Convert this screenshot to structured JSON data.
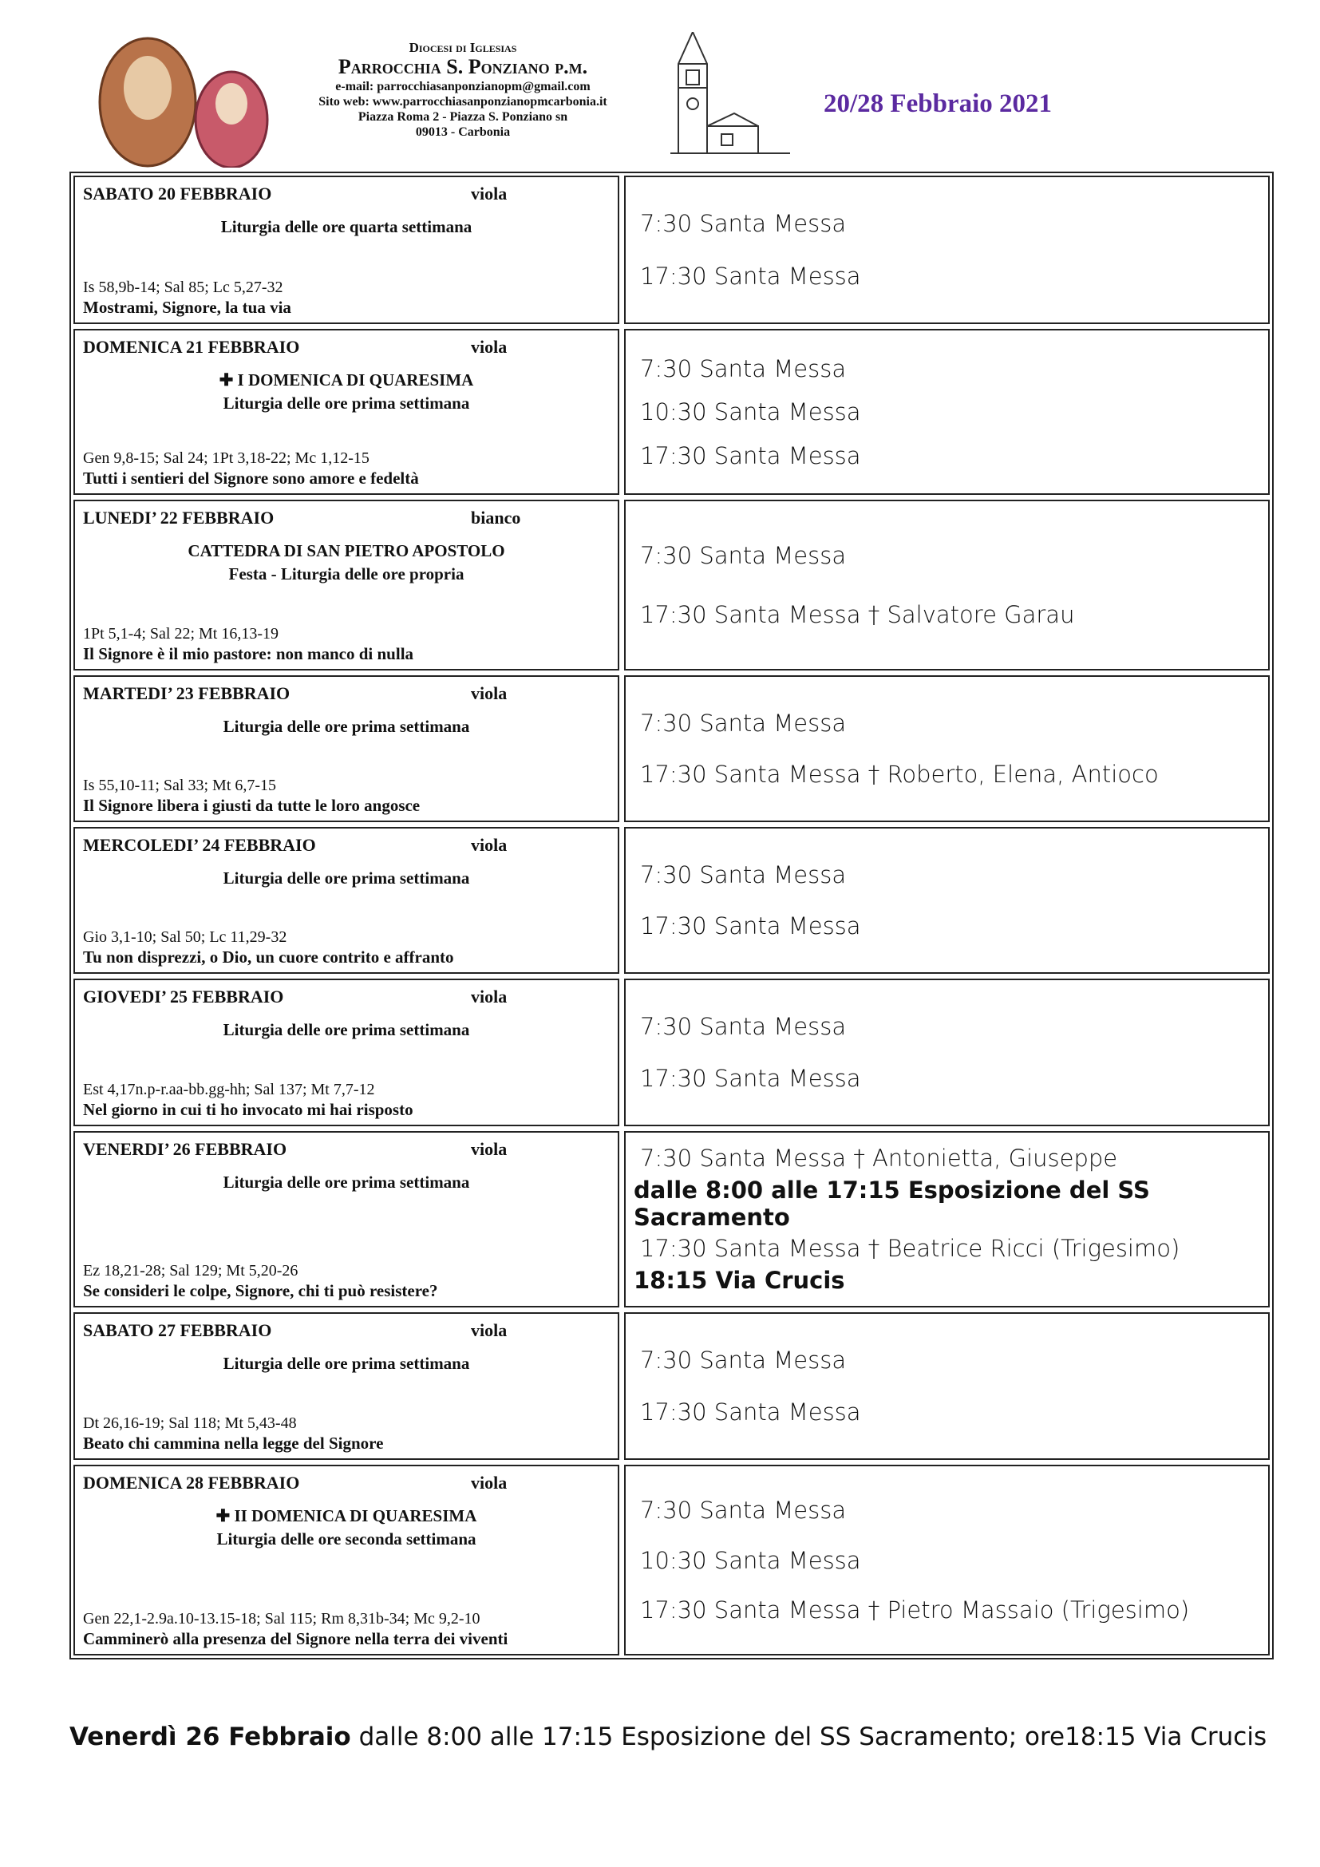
{
  "header": {
    "diocese": "Diocesi di Iglesias",
    "parish": "Parrocchia S. Ponziano p.m.",
    "email": "e-mail: parrocchiasanponzianopm@gmail.com",
    "website": "Sito web: www.parrocchiasanponzianopmcarbonia.it",
    "address": "Piazza Roma 2 - Piazza S. Ponziano sn",
    "city": "09013 - Carbonia",
    "date_range": "20/28 Febbraio 2021"
  },
  "days": [
    {
      "day": "SABATO 20 FEBBRAIO",
      "color": "viola",
      "feast": [],
      "liturgy": "Liturgia delle ore quarta settimana",
      "readings": "Is 58,9b-14; Sal 85; Lc 5,27-32",
      "response": "Mostrami, Signore, la tua via",
      "masses": [
        {
          "text": "7:30 Santa Messa"
        },
        {
          "text": "17:30 Santa Messa"
        }
      ]
    },
    {
      "day": "DOMENICA 21 FEBBRAIO",
      "color": "viola",
      "feast": [
        "✚ I DOMENICA DI QUARESIMA"
      ],
      "liturgy": "Liturgia delle ore prima settimana",
      "readings": "Gen 9,8-15; Sal 24; 1Pt 3,18-22; Mc 1,12-15",
      "response": "Tutti i sentieri del Signore sono amore e fedeltà",
      "masses": [
        {
          "text": "7:30 Santa Messa"
        },
        {
          "text": "10:30 Santa Messa"
        },
        {
          "text": "17:30 Santa Messa"
        }
      ]
    },
    {
      "day": "LUNEDI’ 22 FEBBRAIO",
      "color": "bianco",
      "feast": [
        "CATTEDRA DI SAN PIETRO APOSTOLO"
      ],
      "liturgy": "Festa - Liturgia delle ore propria",
      "readings": "1Pt 5,1-4; Sal 22; Mt 16,13-19",
      "response": "Il Signore è il mio pastore: non manco di nulla",
      "masses": [
        {
          "text": "7:30 Santa Messa"
        },
        {
          "text": "17:30 Santa Messa † Salvatore Garau"
        }
      ]
    },
    {
      "day": "MARTEDI’ 23 FEBBRAIO",
      "color": "viola",
      "feast": [],
      "liturgy": "Liturgia delle ore prima settimana",
      "readings": "Is 55,10-11; Sal 33; Mt 6,7-15",
      "response": "Il Signore libera i giusti da tutte le loro angosce",
      "masses": [
        {
          "text": "7:30 Santa Messa"
        },
        {
          "text": "17:30 Santa Messa † Roberto, Elena, Antioco"
        }
      ]
    },
    {
      "day": "MERCOLEDI’ 24 FEBBRAIO",
      "color": "viola",
      "feast": [],
      "liturgy": "Liturgia delle ore prima settimana",
      "readings": "Gio 3,1-10; Sal 50; Lc 11,29-32",
      "response": "Tu non disprezzi, o Dio, un cuore contrito e affranto",
      "masses": [
        {
          "text": "7:30 Santa Messa"
        },
        {
          "text": "17:30 Santa Messa"
        }
      ]
    },
    {
      "day": "GIOVEDI’ 25 FEBBRAIO",
      "color": "viola",
      "feast": [],
      "liturgy": "Liturgia delle ore prima settimana",
      "readings": "Est 4,17n.p-r.aa-bb.gg-hh; Sal 137; Mt 7,7-12",
      "response": "Nel giorno in cui ti ho invocato mi hai risposto",
      "masses": [
        {
          "text": "7:30 Santa Messa"
        },
        {
          "text": "17:30 Santa Messa"
        }
      ]
    },
    {
      "day": "VENERDI’ 26 FEBBRAIO",
      "color": "viola",
      "feast": [],
      "liturgy": "Liturgia delle ore prima settimana",
      "readings": "Ez 18,21-28; Sal 129; Mt 5,20-26",
      "response": "Se consideri le colpe, Signore, chi ti può resistere?",
      "masses": [
        {
          "text": "7:30 Santa Messa † Antonietta, Giuseppe"
        },
        {
          "text": "dalle 8:00 alle 17:15 Esposizione del SS Sacramento",
          "bold": true
        },
        {
          "text": "17:30 Santa Messa † Beatrice Ricci (Trigesimo)"
        },
        {
          "text": "18:15 Via Crucis",
          "bold": true
        }
      ]
    },
    {
      "day": "SABATO 27 FEBBRAIO",
      "color": "viola",
      "feast": [],
      "liturgy": "Liturgia delle ore prima settimana",
      "readings": "Dt 26,16-19; Sal 118; Mt 5,43-48",
      "response": "Beato chi cammina nella legge del Signore",
      "masses": [
        {
          "text": "7:30 Santa Messa"
        },
        {
          "text": "17:30 Santa Messa"
        }
      ]
    },
    {
      "day": "DOMENICA 28 FEBBRAIO",
      "color": "viola",
      "feast": [
        "✚ II DOMENICA DI QUARESIMA"
      ],
      "liturgy": "Liturgia delle ore seconda settimana",
      "readings": "Gen 22,1-2.9a.10-13.15-18; Sal 115; Rm 8,31b-34; Mc 9,2-10",
      "response": "Camminerò alla presenza del Signore nella terra dei viventi",
      "masses": [
        {
          "text": "7:30 Santa Messa"
        },
        {
          "text": "10:30 Santa Messa"
        },
        {
          "text": "17:30 Santa Messa † Pietro Massaio (Trigesimo)"
        }
      ]
    }
  ],
  "footer": {
    "bold": "Venerdì 26 Febbraio",
    "text": "dalle 8:00 alle 17:15 Esposizione del SS Sacramento; ore18:15 Via Crucis"
  }
}
